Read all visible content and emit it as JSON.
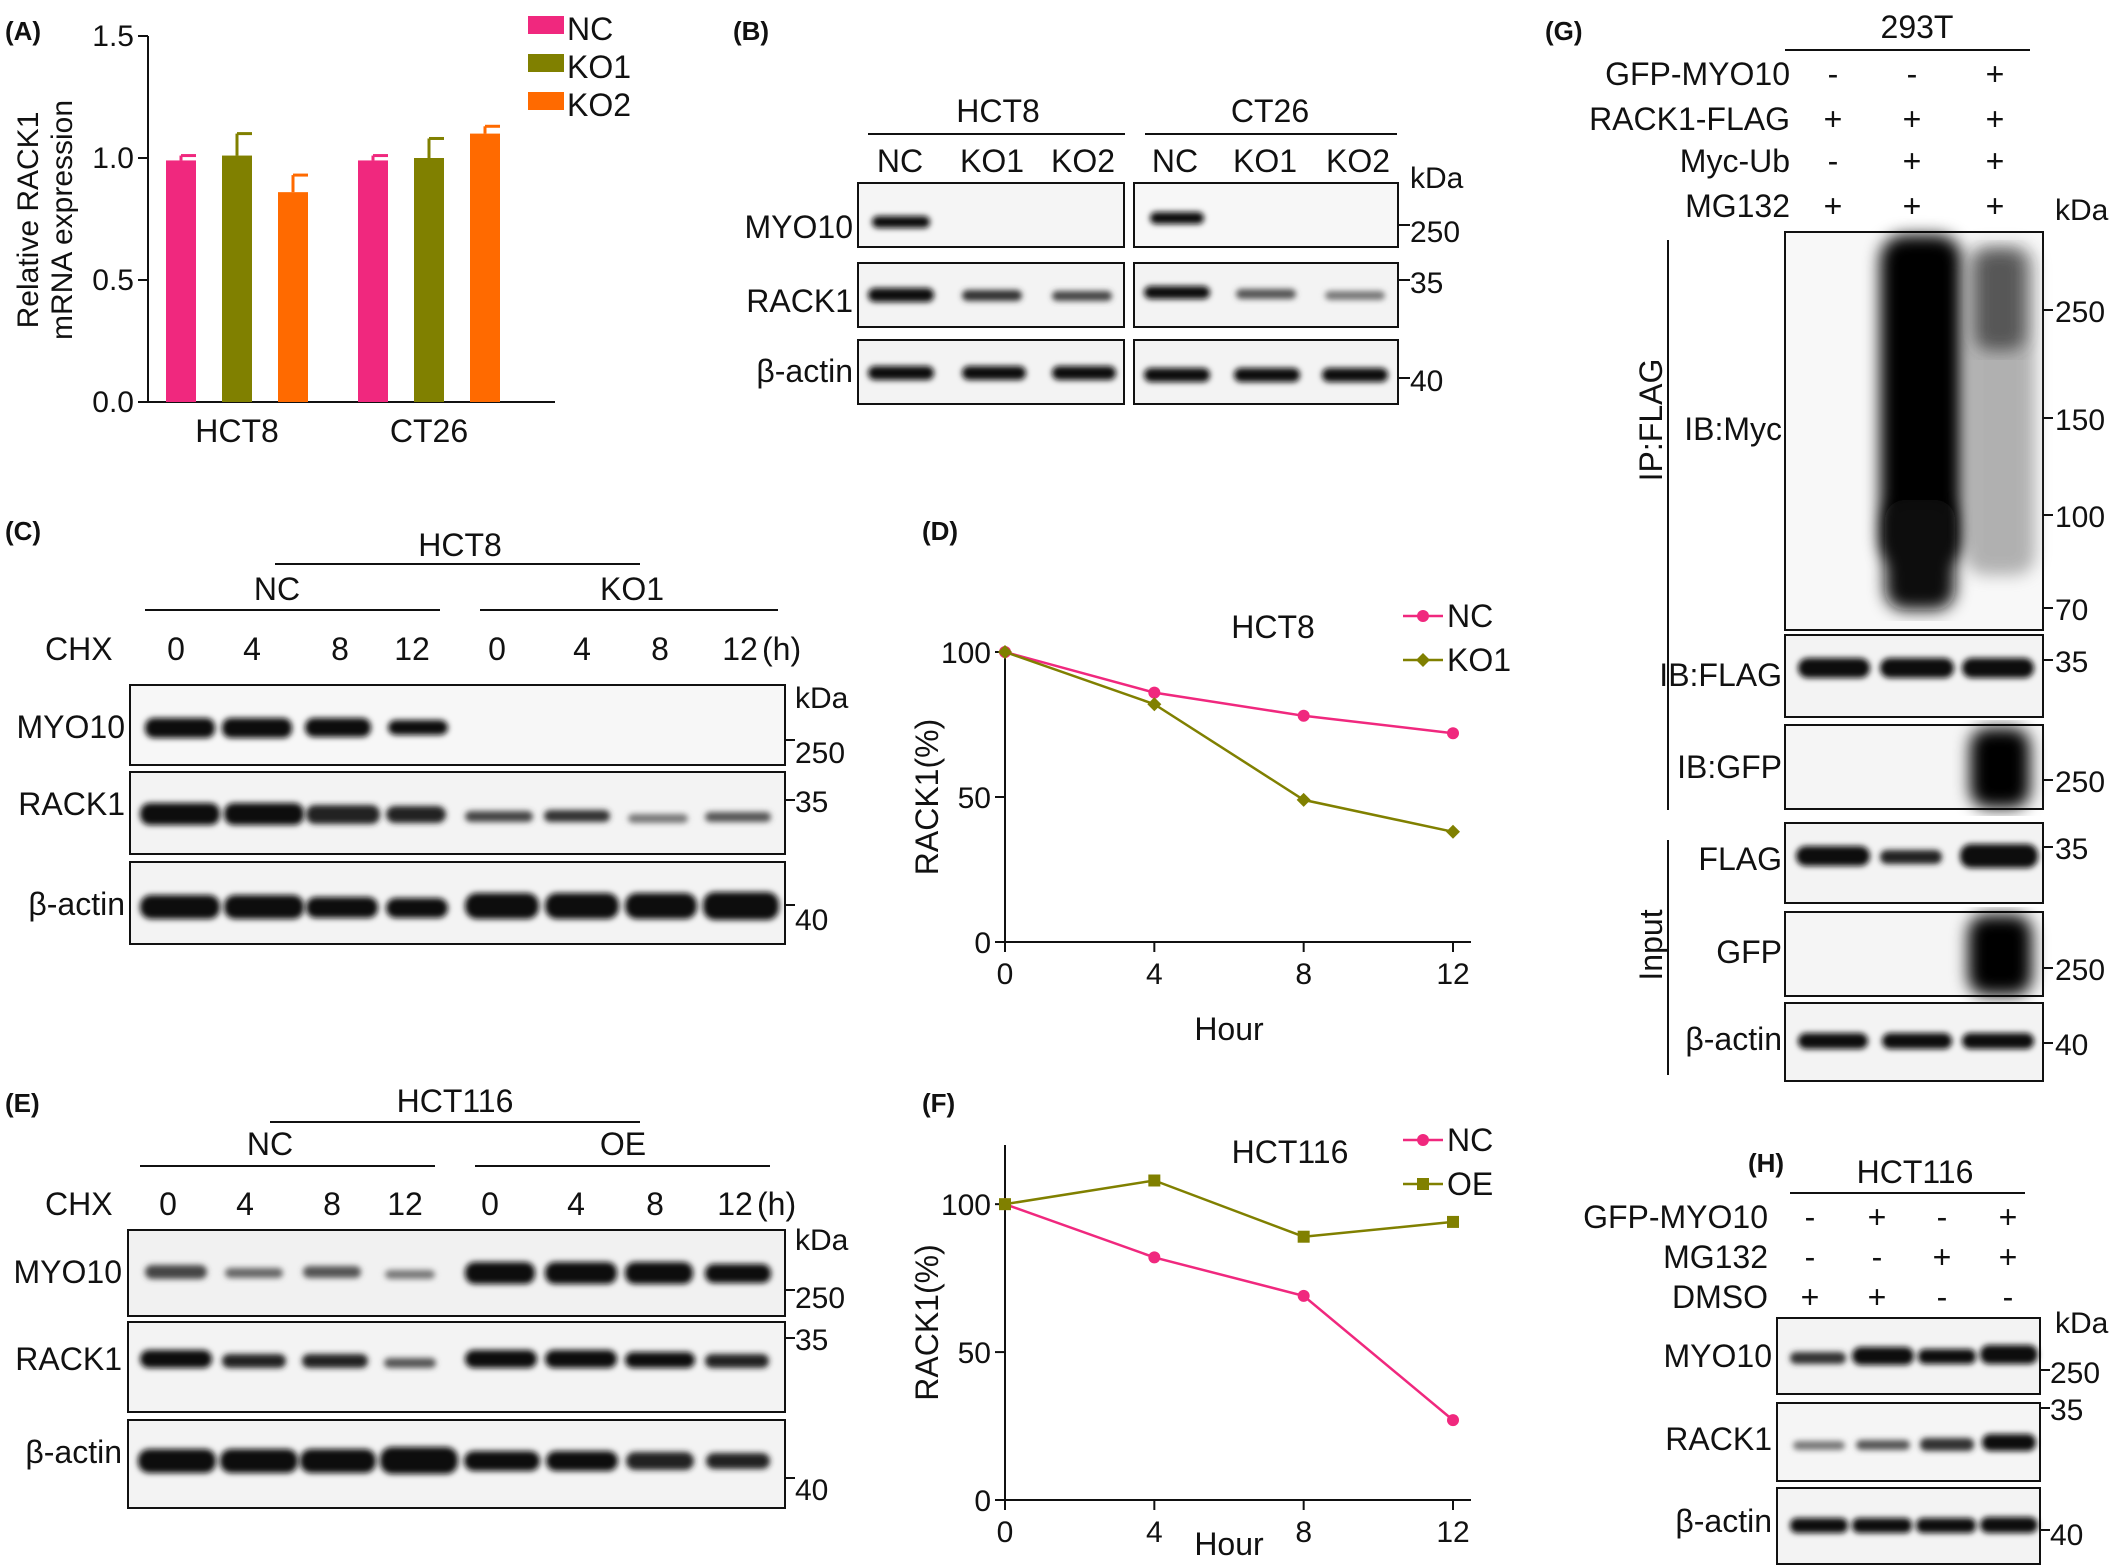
{
  "panels": {
    "A": "(A)",
    "B": "(B)",
    "C": "(C)",
    "D": "(D)",
    "E": "(E)",
    "F": "(F)",
    "G": "(G)",
    "H": "(H)"
  },
  "common": {
    "kda": "kDa",
    "hours_unit": "(h)",
    "cell_hct8": "HCT8",
    "cell_ct26": "CT26",
    "cell_hct116": "HCT116",
    "cell_293t": "293T",
    "nc": "NC",
    "ko1": "KO1",
    "ko2": "KO2",
    "oe": "OE",
    "chx": "CHX",
    "plus": "+",
    "minus": "-"
  },
  "proteins": {
    "myo10": "MYO10",
    "rack1": "RACK1",
    "actin": "β-actin"
  },
  "markers": {
    "m250": "250",
    "m35": "35",
    "m40": "40",
    "m150": "150",
    "m100": "100",
    "m70": "70"
  },
  "blot_times": [
    "0",
    "4",
    "8",
    "12"
  ],
  "panel_G": {
    "rows": [
      "GFP-MYO10",
      "RACK1-FLAG",
      "Myc-Ub",
      "MG132"
    ],
    "signs": [
      [
        "-",
        "-",
        "+"
      ],
      [
        "+",
        "+",
        "+"
      ],
      [
        "-",
        "+",
        "+"
      ],
      [
        "+",
        "+",
        "+"
      ]
    ],
    "ip": "IP:FLAG",
    "input": "Input",
    "ib_myc": "IB:Myc",
    "ib_flag": "IB:FLAG",
    "ib_gfp": "IB:GFP",
    "flag": "FLAG",
    "gfp": "GFP"
  },
  "panel_H": {
    "rows": [
      "GFP-MYO10",
      "MG132",
      "DMSO"
    ],
    "signs": [
      [
        "-",
        "+",
        "-",
        "+"
      ],
      [
        "-",
        "-",
        "+",
        "+"
      ],
      [
        "+",
        "+",
        "-",
        "-"
      ]
    ]
  },
  "chart_data": [
    {
      "panel": "A",
      "type": "bar",
      "ylabel": "Relative RACK1\nmRNA expression",
      "ylim": [
        0,
        1.5
      ],
      "yticks": [
        "0.0",
        "0.5",
        "1.0",
        "1.5"
      ],
      "categories": [
        "HCT8",
        "CT26"
      ],
      "series": [
        {
          "name": "NC",
          "values": [
            0.99,
            0.99
          ],
          "errors": [
            0.02,
            0.02
          ],
          "color": "#f0287e"
        },
        {
          "name": "KO1",
          "values": [
            1.01,
            1.0
          ],
          "errors": [
            0.09,
            0.08
          ],
          "color": "#808000"
        },
        {
          "name": "KO2",
          "values": [
            0.86,
            1.1
          ],
          "errors": [
            0.07,
            0.03
          ],
          "color": "#ff6a00"
        }
      ],
      "legend": "top-right"
    },
    {
      "panel": "D",
      "type": "line",
      "title": "HCT8",
      "xlabel": "Hour",
      "ylabel": "RACK1(%)",
      "xlim": [
        0,
        12
      ],
      "ylim": [
        0,
        100
      ],
      "xticks": [
        "0",
        "4",
        "8",
        "12"
      ],
      "yticks": [
        "0",
        "50",
        "100"
      ],
      "x": [
        0,
        4,
        8,
        12
      ],
      "series": [
        {
          "name": "NC",
          "values": [
            100,
            86,
            78,
            72
          ],
          "color": "#f0287e",
          "marker": "circle"
        },
        {
          "name": "KO1",
          "values": [
            100,
            82,
            49,
            38
          ],
          "color": "#808000",
          "marker": "diamond"
        }
      ],
      "legend": "top-right"
    },
    {
      "panel": "F",
      "type": "line",
      "title": "HCT116",
      "xlabel": "Hour",
      "ylabel": "RACK1(%)",
      "xlim": [
        0,
        12
      ],
      "ylim": [
        0,
        120
      ],
      "xticks": [
        "0",
        "4",
        "8",
        "12"
      ],
      "yticks": [
        "0",
        "50",
        "100"
      ],
      "x": [
        0,
        4,
        8,
        12
      ],
      "series": [
        {
          "name": "NC",
          "values": [
            100,
            82,
            69,
            27
          ],
          "color": "#f0287e",
          "marker": "circle"
        },
        {
          "name": "OE",
          "values": [
            100,
            108,
            89,
            94
          ],
          "color": "#808000",
          "marker": "square"
        }
      ],
      "legend": "top-right"
    }
  ]
}
